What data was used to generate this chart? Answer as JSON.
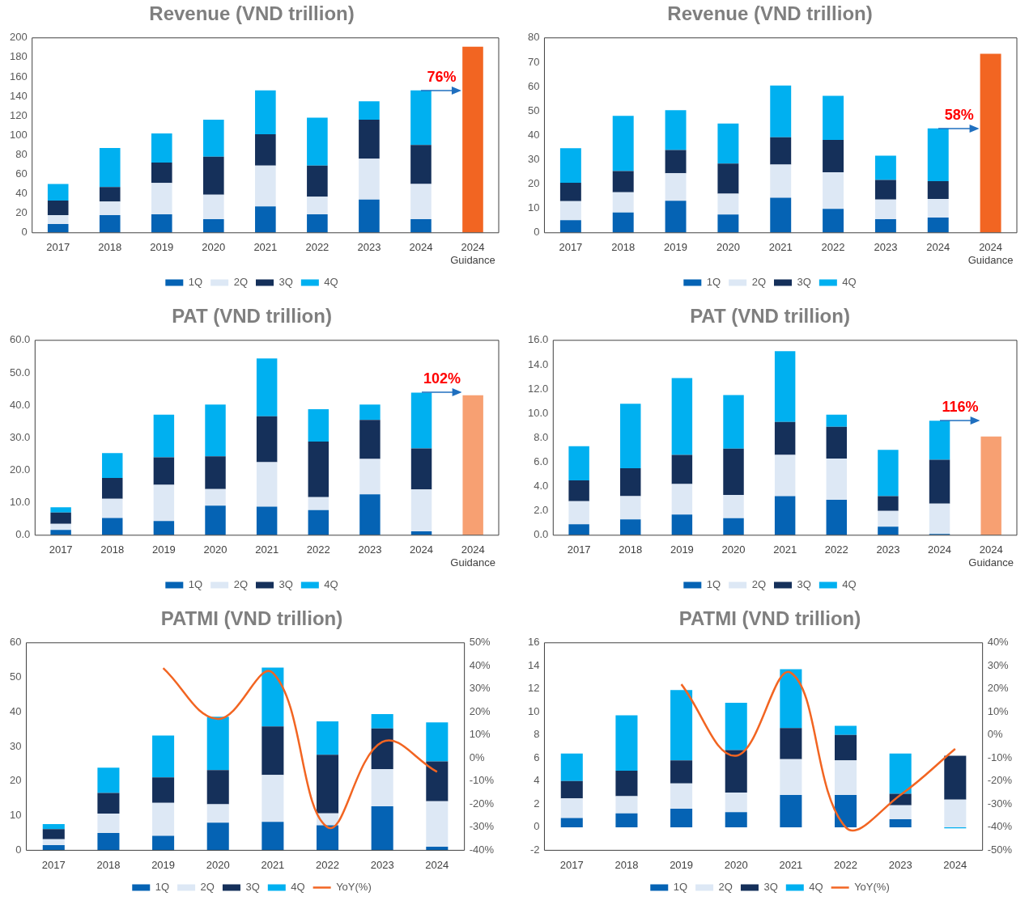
{
  "chart_data": [
    {
      "type": "bar",
      "stacked": true,
      "title": "Revenue (VND trillion)",
      "categories": [
        "2017",
        "2018",
        "2019",
        "2020",
        "2021",
        "2022",
        "2023",
        "2024",
        "2024 Guidance"
      ],
      "series": [
        {
          "name": "1Q",
          "color": "#0563b4",
          "values": [
            9,
            18,
            19,
            14,
            27,
            19,
            34,
            14,
            null
          ]
        },
        {
          "name": "2Q",
          "color": "#dde8f5",
          "values": [
            9,
            14,
            32,
            25,
            42,
            18,
            42,
            36,
            null
          ]
        },
        {
          "name": "3Q",
          "color": "#15305a",
          "values": [
            15,
            15,
            21,
            39,
            32,
            32,
            40,
            40,
            null
          ]
        },
        {
          "name": "4Q",
          "color": "#00b0f0",
          "values": [
            17,
            40,
            30,
            38,
            45,
            49,
            19,
            56,
            null
          ]
        },
        {
          "color": "#f26522",
          "values": [
            null,
            null,
            null,
            null,
            null,
            null,
            null,
            null,
            191
          ]
        }
      ],
      "ylim": [
        0,
        200
      ],
      "yticks": [
        0,
        20,
        40,
        60,
        80,
        100,
        120,
        140,
        160,
        180,
        200
      ],
      "legend": "bottom",
      "annotations": [
        {
          "text": "76%",
          "x": "2024",
          "y": 146
        }
      ]
    },
    {
      "type": "bar",
      "stacked": true,
      "title": "Revenue (VND trillion)",
      "categories": [
        "2017",
        "2018",
        "2019",
        "2020",
        "2021",
        "2022",
        "2023",
        "2024",
        "2024 Guidance"
      ],
      "series": [
        {
          "name": "1Q",
          "color": "#0563b4",
          "values": [
            5.2,
            8.3,
            13.1,
            7.5,
            14.4,
            9.8,
            5.6,
            6.2,
            null
          ]
        },
        {
          "name": "2Q",
          "color": "#dde8f5",
          "values": [
            7.8,
            8.3,
            11.3,
            8.5,
            13.6,
            15,
            8,
            7.7,
            null
          ]
        },
        {
          "name": "3Q",
          "color": "#15305a",
          "values": [
            7.5,
            8.7,
            9.6,
            12.4,
            11.2,
            13.3,
            8.1,
            7.3,
            null
          ]
        },
        {
          "name": "4Q",
          "color": "#00b0f0",
          "values": [
            14.2,
            22.7,
            16.3,
            16.4,
            21.2,
            18.1,
            9.9,
            21.6,
            null
          ]
        },
        {
          "color": "#f26522",
          "values": [
            null,
            null,
            null,
            null,
            null,
            null,
            null,
            null,
            73.5
          ]
        }
      ],
      "ylim": [
        0,
        80
      ],
      "yticks": [
        0,
        10,
        20,
        30,
        40,
        50,
        60,
        70,
        80
      ],
      "legend": "bottom",
      "annotations": [
        {
          "text": "58%",
          "x": "2024",
          "y": 42.8
        }
      ]
    },
    {
      "type": "bar",
      "stacked": true,
      "title": "PAT (VND trillion)",
      "categories": [
        "2017",
        "2018",
        "2019",
        "2020",
        "2021",
        "2022",
        "2023",
        "2024",
        "2024 Guidance"
      ],
      "series": [
        {
          "name": "1Q",
          "color": "#0563b4",
          "values": [
            1.6,
            5.3,
            4.4,
            9.1,
            8.8,
            7.7,
            12.6,
            1.2,
            null
          ]
        },
        {
          "name": "2Q",
          "color": "#dde8f5",
          "values": [
            1.9,
            5.9,
            11.1,
            5.1,
            13.7,
            4,
            10.9,
            12.9,
            null
          ]
        },
        {
          "name": "3Q",
          "color": "#15305a",
          "values": [
            3.5,
            6.4,
            8.5,
            10.1,
            14.1,
            17.1,
            12,
            12.6,
            null
          ]
        },
        {
          "name": "4Q",
          "color": "#00b0f0",
          "values": [
            1.6,
            7.7,
            13.1,
            15.9,
            17.8,
            10,
            4.7,
            17.2,
            null
          ]
        },
        {
          "color": "#f7a072",
          "values": [
            null,
            null,
            null,
            null,
            null,
            null,
            null,
            null,
            43.1
          ]
        }
      ],
      "ylim": [
        0,
        60
      ],
      "yticks": [
        {
          "value": 0,
          "label": "0.0"
        },
        {
          "value": 10,
          "label": "10.0"
        },
        {
          "value": 20,
          "label": "20.0"
        },
        {
          "value": 30,
          "label": "30.0"
        },
        {
          "value": 40,
          "label": "40.0"
        },
        {
          "value": 50,
          "label": "50.0"
        },
        {
          "value": 60,
          "label": "60.0"
        }
      ],
      "legend": "bottom",
      "annotations": [
        {
          "text": "102%",
          "x": "2024",
          "y": 43.9
        }
      ]
    },
    {
      "type": "bar",
      "stacked": true,
      "title": "PAT (VND trillion)",
      "categories": [
        "2017",
        "2018",
        "2019",
        "2020",
        "2021",
        "2022",
        "2023",
        "2024",
        "2024 Guidance"
      ],
      "series": [
        {
          "name": "1Q",
          "color": "#0563b4",
          "values": [
            0.9,
            1.3,
            1.7,
            1.4,
            3.2,
            2.9,
            0.7,
            0.1,
            null
          ]
        },
        {
          "name": "2Q",
          "color": "#dde8f5",
          "values": [
            1.9,
            1.9,
            2.5,
            1.9,
            3.4,
            3.4,
            1.3,
            2.5,
            null
          ]
        },
        {
          "name": "3Q",
          "color": "#15305a",
          "values": [
            1.7,
            2.3,
            2.4,
            3.8,
            2.7,
            2.6,
            1.2,
            3.6,
            null
          ]
        },
        {
          "name": "4Q",
          "color": "#00b0f0",
          "values": [
            2.8,
            5.3,
            6.3,
            4.4,
            5.8,
            1.0,
            3.8,
            3.2,
            null
          ]
        },
        {
          "color": "#f7a072",
          "values": [
            null,
            null,
            null,
            null,
            null,
            null,
            null,
            null,
            8.1
          ]
        }
      ],
      "ylim": [
        0,
        16
      ],
      "yticks": [
        {
          "value": 0,
          "label": "0.0"
        },
        {
          "value": 2,
          "label": "2.0"
        },
        {
          "value": 4,
          "label": "4.0"
        },
        {
          "value": 6,
          "label": "6.0"
        },
        {
          "value": 8,
          "label": "8.0"
        },
        {
          "value": 10,
          "label": "10.0"
        },
        {
          "value": 12,
          "label": "12.0"
        },
        {
          "value": 14,
          "label": "14.0"
        },
        {
          "value": 16,
          "label": "16.0"
        }
      ],
      "legend": "bottom",
      "annotations": [
        {
          "text": "116%",
          "x": "2024",
          "y": 9.4
        }
      ]
    },
    {
      "type": "bar",
      "stacked": true,
      "title": "PATMI (VND trillion)",
      "categories": [
        "2017",
        "2018",
        "2019",
        "2020",
        "2021",
        "2022",
        "2023",
        "2024"
      ],
      "series": [
        {
          "name": "1Q",
          "color": "#0563b4",
          "values": [
            1.5,
            5,
            4.2,
            8,
            8.2,
            7.2,
            12.7,
            1
          ]
        },
        {
          "name": "2Q",
          "color": "#dde8f5",
          "values": [
            1.7,
            5.6,
            9.5,
            5.3,
            13.6,
            3.5,
            10.8,
            13.2
          ]
        },
        {
          "name": "3Q",
          "color": "#15305a",
          "values": [
            2.9,
            6,
            7.4,
            9.9,
            14,
            16.9,
            11.7,
            11.5
          ]
        },
        {
          "name": "4Q",
          "color": "#00b0f0",
          "values": [
            1.5,
            7.3,
            12.1,
            15.4,
            17,
            9.7,
            4.2,
            11.3
          ]
        },
        {
          "name": "YoY(%)",
          "type": "line",
          "axis": "y2",
          "color": "#f26522",
          "values": [
            null,
            null,
            39,
            17,
            37,
            -30,
            7,
            -6
          ]
        }
      ],
      "ylim": [
        0,
        60
      ],
      "yticks": [
        0,
        10,
        20,
        30,
        40,
        50,
        60
      ],
      "y2lim": [
        -40,
        50
      ],
      "y2ticks": [
        {
          "value": -40,
          "label": "-40%"
        },
        {
          "value": -30,
          "label": "-30%"
        },
        {
          "value": -20,
          "label": "-20%"
        },
        {
          "value": -10,
          "label": "-10%"
        },
        {
          "value": 0,
          "label": "0%"
        },
        {
          "value": 10,
          "label": "10%"
        },
        {
          "value": 20,
          "label": "20%"
        },
        {
          "value": 30,
          "label": "30%"
        },
        {
          "value": 40,
          "label": "40%"
        },
        {
          "value": 50,
          "label": "50%"
        }
      ],
      "legend": "bottom"
    },
    {
      "type": "bar",
      "stacked": true,
      "title": "PATMI (VND trillion)",
      "categories": [
        "2017",
        "2018",
        "2019",
        "2020",
        "2021",
        "2022",
        "2023",
        "2024"
      ],
      "series": [
        {
          "name": "1Q",
          "color": "#0563b4",
          "values": [
            0.8,
            1.2,
            1.6,
            1.3,
            2.8,
            2.8,
            0.7,
            0
          ]
        },
        {
          "name": "2Q",
          "color": "#dde8f5",
          "values": [
            1.7,
            1.5,
            2.2,
            1.7,
            3.1,
            3.0,
            1.2,
            2.4
          ]
        },
        {
          "name": "3Q",
          "color": "#15305a",
          "values": [
            1.5,
            2.2,
            2.0,
            3.7,
            2.7,
            2.2,
            1.0,
            3.8
          ]
        },
        {
          "name": "4Q",
          "color": "#00b0f0",
          "values": [
            2.4,
            4.8,
            6.1,
            4.1,
            5.1,
            0.8,
            3.5,
            -0.1
          ]
        },
        {
          "name": "YoY(%)",
          "type": "line",
          "axis": "y2",
          "color": "#f26522",
          "values": [
            null,
            null,
            22,
            -9,
            27,
            -40,
            -26,
            -6
          ]
        }
      ],
      "ylim": [
        -2,
        16
      ],
      "yticks": [
        -2,
        0,
        2,
        4,
        6,
        8,
        10,
        12,
        14,
        16
      ],
      "y2lim": [
        -50,
        40
      ],
      "y2ticks": [
        {
          "value": -50,
          "label": "-50%"
        },
        {
          "value": -40,
          "label": "-40%"
        },
        {
          "value": -30,
          "label": "-30%"
        },
        {
          "value": -20,
          "label": "-20%"
        },
        {
          "value": -10,
          "label": "-10%"
        },
        {
          "value": 0,
          "label": "0%"
        },
        {
          "value": 10,
          "label": "10%"
        },
        {
          "value": 20,
          "label": "20%"
        },
        {
          "value": 30,
          "label": "30%"
        },
        {
          "value": 40,
          "label": "40%"
        }
      ],
      "legend": "bottom"
    }
  ]
}
